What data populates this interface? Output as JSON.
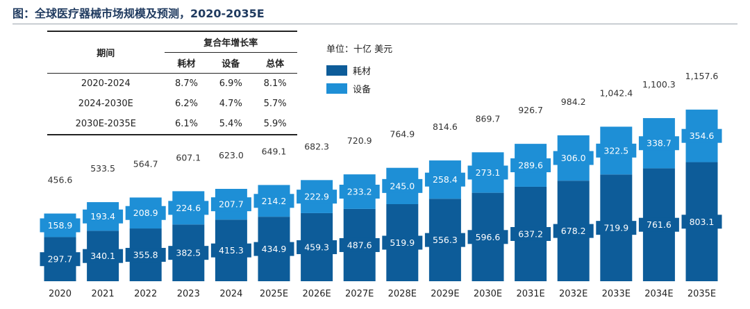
{
  "title": "图：全球医疗器械市场规模及预测，2020-2035E",
  "cagr_table": {
    "col_period": "期间",
    "group_header": "复合年增长率",
    "col_consumables": "耗材",
    "col_equipment": "设备",
    "col_total": "总体",
    "rows": [
      {
        "period": "2020-2024",
        "consumables": "8.7%",
        "equipment": "6.9%",
        "total": "8.1%"
      },
      {
        "period": "2024-2030E",
        "consumables": "6.2%",
        "equipment": "4.7%",
        "total": "5.7%"
      },
      {
        "period": "2030E-2035E",
        "consumables": "6.1%",
        "equipment": "5.4%",
        "total": "5.9%"
      }
    ]
  },
  "colors": {
    "consumables": "#0d5c99",
    "equipment": "#1e8fd6",
    "title": "#1f3a5f"
  },
  "chart_data": {
    "type": "bar",
    "stacked": true,
    "unit": "单位：十亿 美元",
    "categories": [
      "2020",
      "2021",
      "2022",
      "2023",
      "2024",
      "2025E",
      "2026E",
      "2027E",
      "2028E",
      "2029E",
      "2030E",
      "2031E",
      "2032E",
      "2033E",
      "2034E",
      "2035E"
    ],
    "series": [
      {
        "name": "耗材",
        "values": [
          297.7,
          340.1,
          355.8,
          382.5,
          415.3,
          434.9,
          459.3,
          487.6,
          519.9,
          556.3,
          596.6,
          637.2,
          678.2,
          719.9,
          761.6,
          803.1
        ]
      },
      {
        "name": "设备",
        "values": [
          158.9,
          193.4,
          208.9,
          224.6,
          207.7,
          214.2,
          222.9,
          233.2,
          245.0,
          258.4,
          273.1,
          289.6,
          306.0,
          322.5,
          338.7,
          354.6
        ]
      }
    ],
    "totals": [
      "456.6",
      "533.5",
      "564.7",
      "607.1",
      "623.0",
      "649.1",
      "682.3",
      "720.9",
      "764.9",
      "814.6",
      "869.7",
      "926.7",
      "984.2",
      "1,042.4",
      "1,100.3",
      "1,157.6"
    ],
    "consumables_labels": [
      "297.7",
      "340.1",
      "355.8",
      "382.5",
      "415.3",
      "434.9",
      "459.3",
      "487.6",
      "519.9",
      "556.3",
      "596.6",
      "637.2",
      "678.2",
      "719.9",
      "761.6",
      "803.1"
    ],
    "equipment_labels": [
      "158.9",
      "193.4",
      "208.9",
      "224.6",
      "207.7",
      "214.2",
      "222.9",
      "233.2",
      "245.0",
      "258.4",
      "273.1",
      "289.6",
      "306.0",
      "322.5",
      "338.7",
      "354.6"
    ],
    "legend": [
      "耗材",
      "设备"
    ],
    "legend_position": "top-center",
    "grid": false,
    "ylim": [
      0,
      1200
    ]
  }
}
